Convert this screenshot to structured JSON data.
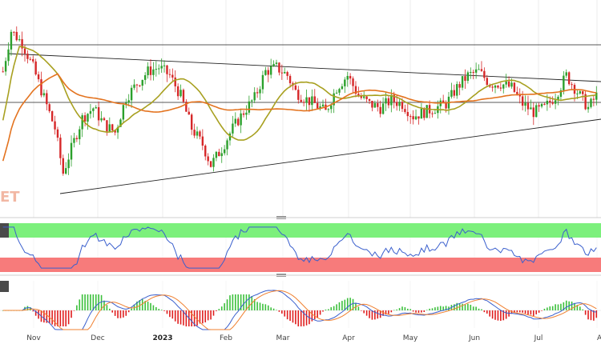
{
  "chart_data": [
    {
      "type": "candlestick",
      "panel": "price",
      "ohlc": [],
      "moving_averages": [
        {
          "color": "#a8a020"
        },
        {
          "color": "#e3731f"
        }
      ],
      "watermark_text": "ET",
      "colors": {
        "up": "#2ca02c",
        "down": "#d62728",
        "trendline": "#222222",
        "grid": "#e6e6e6"
      }
    },
    {
      "type": "line",
      "panel": "oscillator",
      "bands": [
        {
          "name": "overbought",
          "color": "#7cf07c"
        },
        {
          "name": "oversold",
          "color": "#f77b7b"
        }
      ],
      "line_color": "#3a5fcd"
    },
    {
      "type": "bar",
      "panel": "histogram",
      "lines": [
        {
          "color": "#3a5fcd"
        },
        {
          "color": "#f08030"
        }
      ],
      "bar_colors": {
        "positive": "#3cc03c",
        "negative": "#e01e1e"
      }
    }
  ],
  "x_axis": {
    "ticks": [
      {
        "label": "Nov",
        "bold": false
      },
      {
        "label": "Dec",
        "bold": false
      },
      {
        "label": "2023",
        "bold": true
      },
      {
        "label": "Feb",
        "bold": false
      },
      {
        "label": "Mar",
        "bold": false
      },
      {
        "label": "Apr",
        "bold": false
      },
      {
        "label": "May",
        "bold": false
      },
      {
        "label": "Jun",
        "bold": false
      },
      {
        "label": "Jul",
        "bold": false
      },
      {
        "label": "Au",
        "bold": false
      }
    ]
  }
}
